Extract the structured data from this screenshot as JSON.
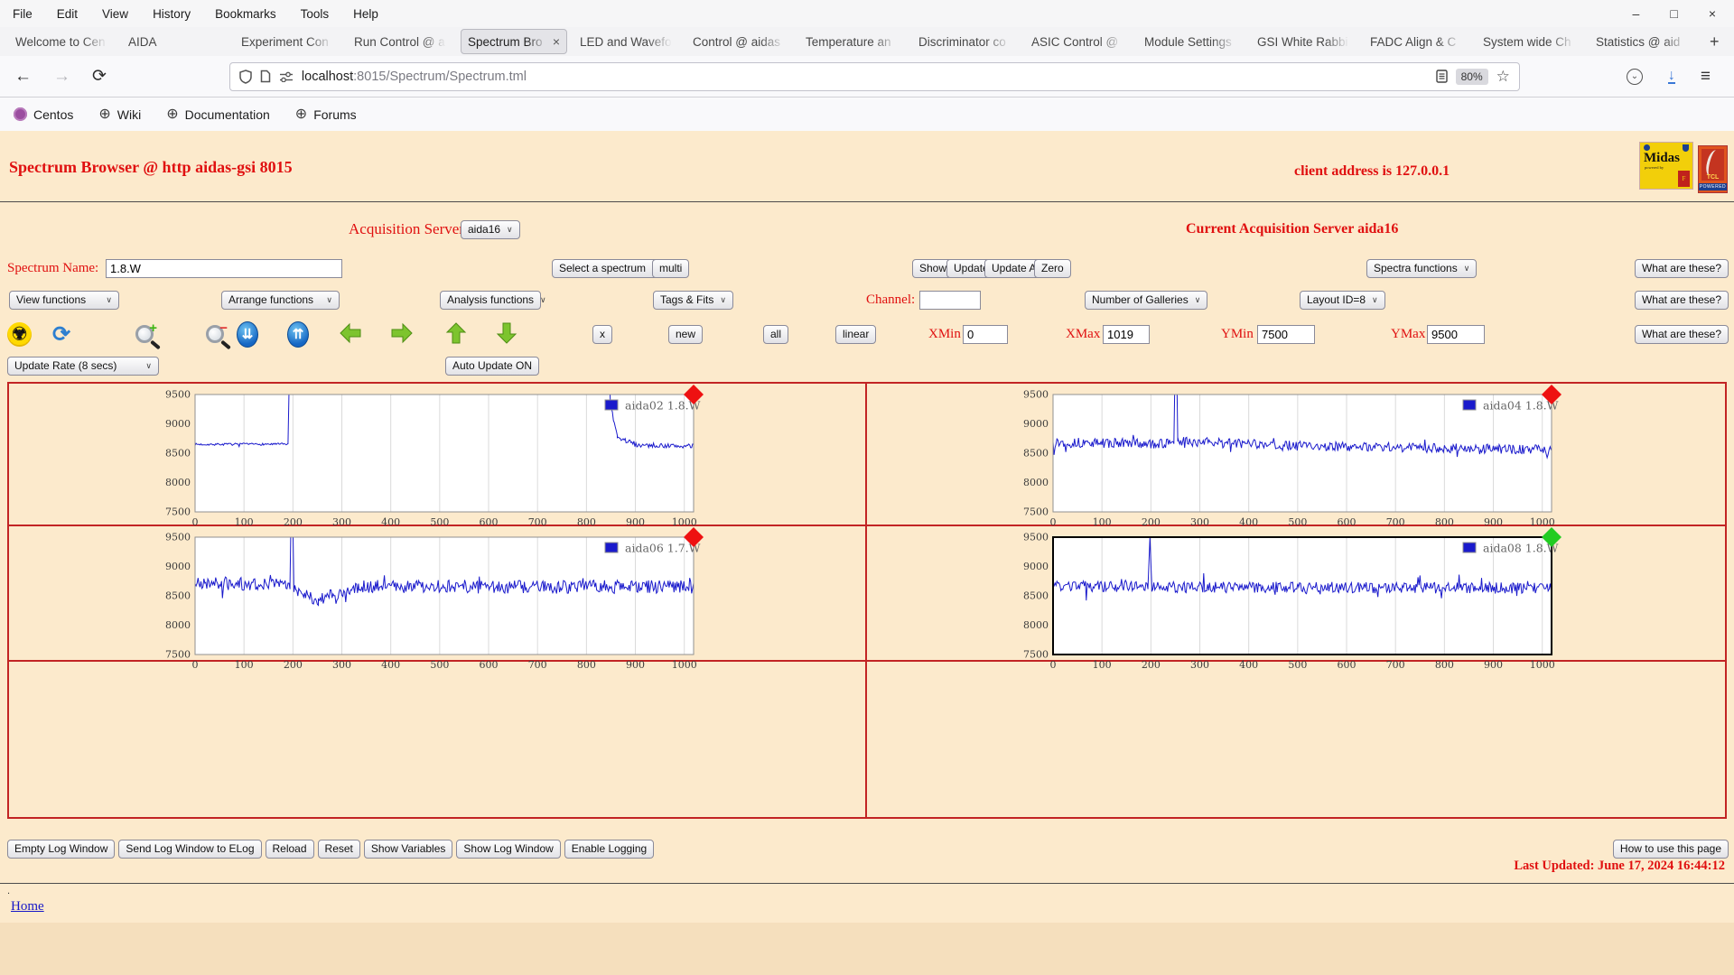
{
  "browser": {
    "menu": [
      "File",
      "Edit",
      "View",
      "History",
      "Bookmarks",
      "Tools",
      "Help"
    ],
    "window_controls": {
      "minimize": "–",
      "maximize": "□",
      "close": "×"
    },
    "tabs": [
      "Welcome to Cen",
      "AIDA",
      "Experiment Con",
      "Run Control @ a",
      "Spectrum Bro",
      "LED and Wavefo",
      "Control @ aidas",
      "Temperature an",
      "Discriminator co",
      "ASIC Control @",
      "Module Settings",
      "GSI White Rabbi",
      "FADC Align & C",
      "System wide Ch",
      "Statistics @ aid"
    ],
    "active_tab_index": 4,
    "url_host": "localhost",
    "url_rest": ":8015/Spectrum/Spectrum.tml",
    "zoom_badge": "80%",
    "bookmarks": [
      "Centos",
      "Wiki",
      "Documentation",
      "Forums"
    ]
  },
  "icons": {
    "back": "←",
    "forward": "→",
    "reload": "⟳",
    "star": "☆",
    "download": "↓",
    "menu": "≡",
    "pocket": "⌄",
    "globe": "⊕",
    "newtab": "+",
    "close": "×",
    "chevron": "∨",
    "radiation": "☢",
    "refresh": "⟳",
    "zoom_in_plus": "+",
    "zoom_out_minus": "−",
    "blue_down": "⇊",
    "blue_up": "⇈"
  },
  "logos": {
    "midas_word": "Midas",
    "midas_sub": "powered by",
    "midas_f": "F",
    "tcl_word": "TCL",
    "tcl_strip": "POWERED"
  },
  "page": {
    "title": "Spectrum Browser @ http aidas-gsi 8015",
    "client_address": "client address is 127.0.0.1",
    "acq_label": "Acquisition Servers",
    "acq_value": "aida16",
    "current_server": "Current Acquisition Server aida16",
    "spectrum_name_label": "Spectrum Name:",
    "spectrum_name_value": "1.8.W",
    "select_spectrum": "Select a spectrum",
    "multi": "multi",
    "show": "Show",
    "update": "Update",
    "update_all": "Update All",
    "zero": "Zero",
    "spectra_functions": "Spectra functions",
    "what_are_these": "What are these?",
    "view_functions": "View functions",
    "arrange_functions": "Arrange functions",
    "analysis_functions": "Analysis functions",
    "tags_fits": "Tags & Fits",
    "channel_label": "Channel:",
    "channel_value": "",
    "number_of_galleries": "Number of Galleries",
    "layout_id": "Layout ID=8",
    "x_button": "x",
    "new_button": "new",
    "all_button": "all",
    "linear_button": "linear",
    "xmin_label": "XMin",
    "xmin": "0",
    "xmax_label": "XMax",
    "xmax": "1019",
    "ymin_label": "YMin",
    "ymin": "7500",
    "ymax_label": "YMax",
    "ymax": "9500",
    "update_rate": "Update Rate (8 secs)",
    "auto_update": "Auto Update ON",
    "footer_buttons": [
      "Empty Log Window",
      "Send Log Window to ELog",
      "Reload",
      "Reset",
      "Show Variables",
      "Show Log Window",
      "Enable Logging"
    ],
    "how_to": "How to use this page",
    "last_updated": "Last Updated: June 17, 2024 16:44:12",
    "dot": ".",
    "home": "Home"
  },
  "chart_data": [
    {
      "type": "line",
      "series_name": "aida02 1.8.W",
      "legend": "aida02 1.8.W",
      "xlim": [
        0,
        1019
      ],
      "ylim": [
        7500,
        9500
      ],
      "x_ticks": [
        0,
        100,
        200,
        300,
        400,
        500,
        600,
        700,
        800,
        900,
        1000
      ],
      "y_ticks": [
        7500,
        8000,
        8500,
        9000,
        9500
      ],
      "grid": "vertical-only",
      "legend_position": "top-right",
      "line_color": "#1a1acc",
      "corner_marker_color": "#ee1111",
      "selected": false,
      "seed": 7,
      "segments": [
        [
          0,
          190,
          8650,
          8655,
          18
        ],
        [
          190,
          195,
          8655,
          10900,
          0
        ],
        [
          195,
          843,
          10900,
          10900,
          0
        ],
        [
          843,
          849,
          10900,
          9320,
          0
        ],
        [
          849,
          863,
          9320,
          8760,
          45
        ],
        [
          863,
          905,
          8760,
          8640,
          45
        ],
        [
          905,
          1019,
          8640,
          8615,
          40
        ]
      ],
      "description": "baseline ~8650; spike at x~195 goes off-scale; trace above y-range until ~845, returns and settles ~8620"
    },
    {
      "type": "line",
      "series_name": "aida04 1.8.W",
      "legend": "aida04 1.8.W",
      "xlim": [
        0,
        1019
      ],
      "ylim": [
        7500,
        9500
      ],
      "x_ticks": [
        0,
        100,
        200,
        300,
        400,
        500,
        600,
        700,
        800,
        900,
        1000
      ],
      "y_ticks": [
        7500,
        8000,
        8500,
        9000,
        9500
      ],
      "grid": "vertical-only",
      "legend_position": "top-right",
      "line_color": "#1a1acc",
      "corner_marker_color": "#ee1111",
      "selected": false,
      "seed": 13,
      "segments": [
        [
          0,
          247,
          8680,
          8660,
          85
        ],
        [
          247,
          251,
          8660,
          10900,
          0
        ],
        [
          251,
          255,
          10900,
          8700,
          0
        ],
        [
          255,
          520,
          8700,
          8620,
          85
        ],
        [
          520,
          1019,
          8620,
          8560,
          80
        ]
      ],
      "description": "noisy band ~8550-8750 with off-scale spike near x~250, slight downward drift"
    },
    {
      "type": "line",
      "series_name": "aida06 1.7.W",
      "legend": "aida06 1.7.W",
      "xlim": [
        0,
        1019
      ],
      "ylim": [
        7500,
        9500
      ],
      "x_ticks": [
        0,
        100,
        200,
        300,
        400,
        500,
        600,
        700,
        800,
        900,
        1000
      ],
      "y_ticks": [
        7500,
        8000,
        8500,
        9000,
        9500
      ],
      "grid": "vertical-only",
      "legend_position": "top-right",
      "line_color": "#1a1acc",
      "corner_marker_color": "#ee1111",
      "selected": false,
      "seed": 21,
      "segments": [
        [
          0,
          194,
          8720,
          8700,
          115
        ],
        [
          194,
          198,
          8700,
          10900,
          0
        ],
        [
          198,
          202,
          10900,
          8600,
          0
        ],
        [
          202,
          252,
          8600,
          8430,
          105
        ],
        [
          252,
          335,
          8430,
          8650,
          110
        ],
        [
          335,
          1019,
          8660,
          8650,
          115
        ]
      ],
      "description": "wide noisy band ~8450-8950, off-scale spike at x~195, dip to ~8430 near x~250"
    },
    {
      "type": "line",
      "series_name": "aida08 1.8.W",
      "legend": "aida08 1.8.W",
      "xlim": [
        0,
        1019
      ],
      "ylim": [
        7500,
        9500
      ],
      "x_ticks": [
        0,
        100,
        200,
        300,
        400,
        500,
        600,
        700,
        800,
        900,
        1000
      ],
      "y_ticks": [
        7500,
        8000,
        8500,
        9000,
        9500
      ],
      "grid": "vertical-only",
      "legend_position": "top-right",
      "line_color": "#1a1acc",
      "corner_marker_color": "#22cc22",
      "selected": true,
      "seed": 33,
      "segments": [
        [
          0,
          194,
          8660,
          8650,
          95
        ],
        [
          194,
          198,
          8650,
          9500,
          0
        ],
        [
          198,
          202,
          9500,
          8650,
          0
        ],
        [
          202,
          1019,
          8650,
          8630,
          95
        ]
      ],
      "description": "noisy band ~8550-8750 with spike to ~9500 at x~195; plot highlighted with black border, green status diamond"
    }
  ]
}
